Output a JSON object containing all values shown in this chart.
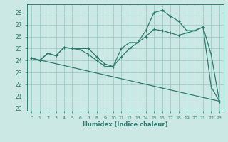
{
  "xlabel": "Humidex (Indice chaleur)",
  "xlim": [
    -0.5,
    23.5
  ],
  "ylim": [
    19.8,
    28.7
  ],
  "yticks": [
    20,
    21,
    22,
    23,
    24,
    25,
    26,
    27,
    28
  ],
  "xtick_labels": [
    "0",
    "1",
    "2",
    "3",
    "4",
    "5",
    "6",
    "7",
    "8",
    "9",
    "10",
    "11",
    "12",
    "13",
    "14",
    "15",
    "16",
    "17",
    "18",
    "19",
    "20",
    "21",
    "22",
    "23"
  ],
  "bg_color": "#cce8e4",
  "line_color": "#2d7d6e",
  "grid_color": "#a0ccc8",
  "line1_x": [
    0,
    1,
    2,
    3,
    4,
    5,
    6,
    7,
    8,
    9,
    10,
    11,
    12,
    13,
    14,
    15,
    16,
    17,
    18,
    19,
    20,
    21,
    22,
    23
  ],
  "line1_y": [
    24.2,
    24.0,
    24.6,
    24.4,
    25.1,
    25.0,
    25.0,
    25.0,
    24.3,
    23.7,
    23.5,
    25.0,
    25.5,
    25.5,
    26.5,
    28.0,
    28.2,
    27.7,
    27.3,
    26.5,
    26.5,
    26.8,
    21.8,
    20.6
  ],
  "line2_x": [
    0,
    1,
    2,
    3,
    4,
    5,
    6,
    7,
    8,
    9,
    10,
    11,
    12,
    13,
    14,
    15,
    16,
    17,
    18,
    19,
    20,
    21,
    22,
    23
  ],
  "line2_y": [
    24.2,
    24.0,
    24.6,
    24.4,
    25.1,
    25.0,
    24.9,
    24.5,
    24.0,
    23.5,
    23.5,
    24.3,
    25.0,
    25.5,
    26.0,
    26.6,
    26.5,
    26.3,
    26.1,
    26.3,
    26.5,
    26.8,
    24.5,
    20.6
  ],
  "line3_x": [
    0,
    23
  ],
  "line3_y": [
    24.2,
    20.6
  ]
}
